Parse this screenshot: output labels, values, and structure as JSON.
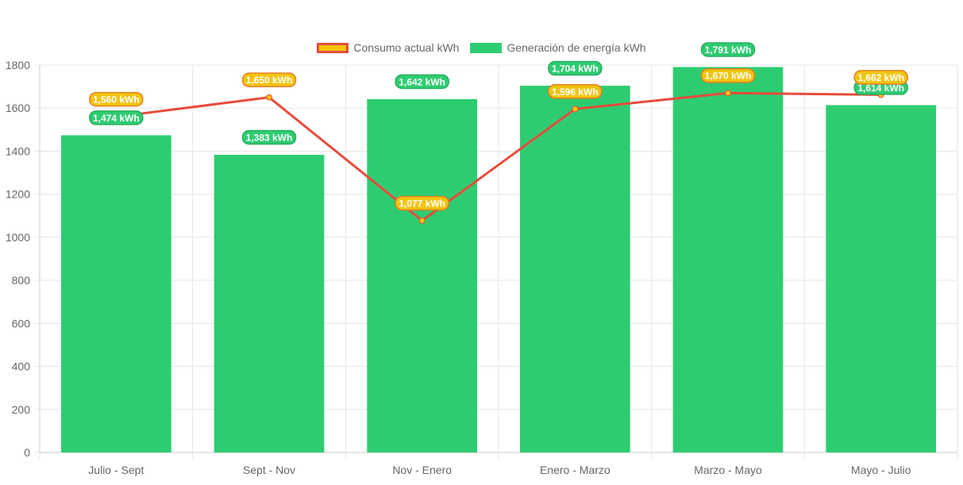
{
  "chart_data": {
    "type": "bar",
    "categories": [
      "Julio - Sept",
      "Sept - Nov",
      "Nov - Enero",
      "Enero - Marzo",
      "Marzo - Mayo",
      "Mayo - Julio"
    ],
    "ylim": [
      0,
      1800
    ],
    "yticks": [
      0,
      200,
      400,
      600,
      800,
      1000,
      1200,
      1400,
      1600,
      1800
    ],
    "grid": true,
    "legend_position": "top-center",
    "series": [
      {
        "name": "Consumo actual kWh",
        "type": "line",
        "values": [
          1560,
          1650,
          1077,
          1596,
          1670,
          1662
        ],
        "labels": [
          "1,560 kWh",
          "1,650 kWh",
          "1,077 kWh",
          "1,596 kWh",
          "1,670 kWh",
          "1,662 kWh"
        ],
        "color": "#f1c40f",
        "border_color": "#e74c3c"
      },
      {
        "name": "Generación de energía kWh",
        "type": "bar",
        "values": [
          1474,
          1383,
          1642,
          1704,
          1791,
          1614
        ],
        "labels": [
          "1,474 kWh",
          "1,383 kWh",
          "1,642 kWh",
          "1,704 kWh",
          "1,791 kWh",
          "1,614 kWh"
        ],
        "color": "#2ecc71"
      }
    ]
  }
}
